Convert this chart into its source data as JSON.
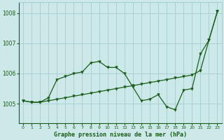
{
  "title": "Graphe pression niveau de la mer (hPa)",
  "background_color": "#cce8e8",
  "grid_color": "#aad0d0",
  "line_color": "#1a5c1a",
  "xlim": [
    -0.5,
    23.5
  ],
  "ylim": [
    1004.35,
    1008.35
  ],
  "yticks": [
    1005,
    1006,
    1007,
    1008
  ],
  "xticks": [
    0,
    1,
    2,
    3,
    4,
    5,
    6,
    7,
    8,
    9,
    10,
    11,
    12,
    13,
    14,
    15,
    16,
    17,
    18,
    19,
    20,
    21,
    22,
    23
  ],
  "series1_x": [
    0,
    1,
    2,
    3,
    4,
    5,
    6,
    7,
    8,
    9,
    10,
    11,
    12,
    13,
    14,
    15,
    16,
    17,
    18,
    19,
    20,
    21,
    22,
    23
  ],
  "series1_y": [
    1005.1,
    1005.05,
    1005.05,
    1005.1,
    1005.15,
    1005.2,
    1005.25,
    1005.3,
    1005.35,
    1005.4,
    1005.45,
    1005.5,
    1005.55,
    1005.6,
    1005.65,
    1005.7,
    1005.75,
    1005.8,
    1005.85,
    1005.9,
    1005.95,
    1006.1,
    1007.1,
    1008.05
  ],
  "series2_x": [
    0,
    1,
    2,
    3,
    4,
    5,
    6,
    7,
    8,
    9,
    10,
    11,
    12,
    13,
    14,
    15,
    16,
    17,
    18,
    19,
    20,
    21,
    22,
    23
  ],
  "series2_y": [
    1005.1,
    1005.05,
    1005.05,
    1005.2,
    1005.8,
    1005.9,
    1006.0,
    1006.05,
    1006.35,
    1006.4,
    1006.2,
    1006.2,
    1006.0,
    1005.55,
    1005.1,
    1005.15,
    1005.3,
    1004.9,
    1004.8,
    1005.45,
    1005.5,
    1006.65,
    1007.1,
    1008.05
  ]
}
